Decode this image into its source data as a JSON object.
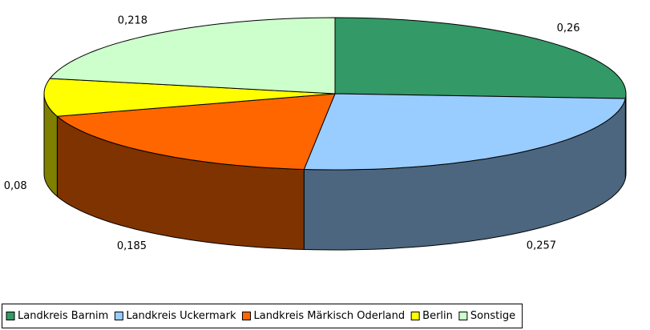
{
  "chart_data": {
    "type": "pie3d",
    "categories": [
      "Landkreis Barnim",
      "Landkreis Uckermark",
      "Landkreis Märkisch Oderland",
      "Berlin",
      "Sonstige"
    ],
    "values": [
      0.26,
      0.257,
      0.185,
      0.08,
      0.218
    ],
    "value_labels": [
      "0,26",
      "0,257",
      "0,185",
      "0,08",
      "0,218"
    ],
    "colors": [
      "#339966",
      "#99ccff",
      "#ff6600",
      "#ffff00",
      "#ccffcc"
    ],
    "legend": "bottom"
  }
}
